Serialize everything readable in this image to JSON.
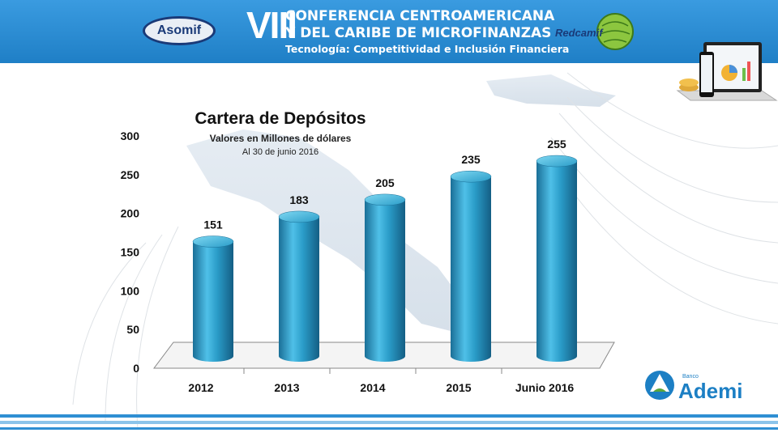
{
  "header": {
    "left_logo_text": "Asomif",
    "roman": "VIII",
    "title_line1": "CONFERENCIA CENTROAMERICANA",
    "title_line2": "Y DEL CARIBE DE MICROFINANZAS",
    "subtitle": "Tecnología: Competitividad e Inclusión Financiera",
    "right_logo_text": "Redcamif"
  },
  "footer": {
    "brand_small": "Banco",
    "brand": "Ademi"
  },
  "colors": {
    "banner": "#2f8fd3",
    "bar": "#2a9cc8",
    "bar_dark": "#1a6f97",
    "bar_light": "#6fd0ee"
  },
  "chart_data": {
    "type": "bar",
    "title": "Cartera de Depósitos",
    "subtitle": "Valores en Millones de dólares",
    "note": "Al 30 de junio 2016",
    "categories": [
      "2012",
      "2013",
      "2014",
      "2015",
      "Junio 2016"
    ],
    "values": [
      151,
      183,
      205,
      235,
      255
    ],
    "data_labels": [
      "151",
      "183",
      "205",
      "235",
      "255"
    ],
    "ylim": [
      0,
      300
    ],
    "yticks": [
      0,
      50,
      100,
      150,
      200,
      250,
      300
    ],
    "ytick_labels": [
      "0",
      "50",
      "100",
      "150",
      "200",
      "250",
      "300"
    ],
    "grid": false,
    "legend": "none",
    "style": "3d-cylinder"
  }
}
